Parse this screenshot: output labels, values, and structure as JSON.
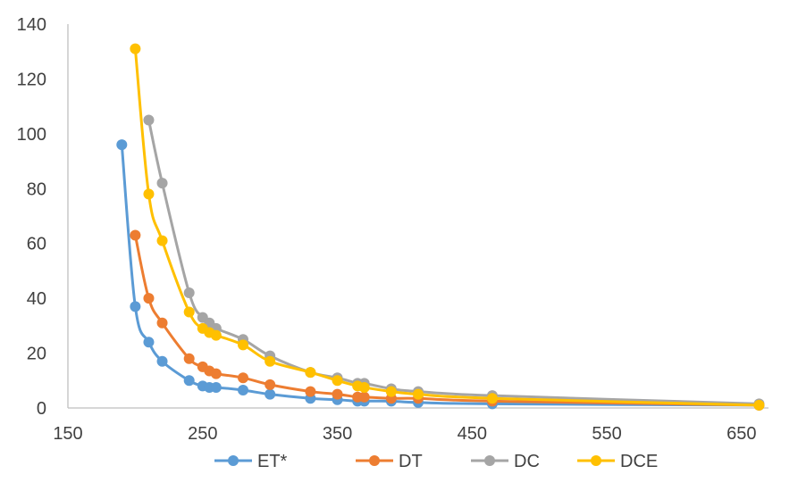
{
  "chart_data": {
    "type": "scatter",
    "title": "",
    "xlabel": "",
    "ylabel": "",
    "xlim": [
      150,
      670
    ],
    "ylim": [
      0,
      140
    ],
    "xticks": [
      150,
      250,
      350,
      450,
      550,
      650
    ],
    "yticks": [
      0,
      20,
      40,
      60,
      80,
      100,
      120,
      140
    ],
    "xtick_labels": [
      "150",
      "250",
      "350",
      "450",
      "550",
      "650"
    ],
    "ytick_labels": [
      "0",
      "20",
      "40",
      "60",
      "80",
      "100",
      "120",
      "140"
    ],
    "grid": false,
    "legend_position": "bottom",
    "series": [
      {
        "name": "ET*",
        "color": "#5B9BD5",
        "x": [
          190,
          200,
          210,
          220,
          240,
          250,
          255,
          260,
          280,
          300,
          330,
          350,
          365,
          370,
          390,
          410,
          465,
          663
        ],
        "y": [
          96,
          37,
          24,
          17,
          10,
          8,
          7.5,
          7.5,
          6.5,
          5,
          3.5,
          3,
          2.5,
          2.5,
          2.5,
          2,
          1.5,
          1
        ]
      },
      {
        "name": "DT",
        "color": "#ED7D31",
        "x": [
          200,
          210,
          220,
          240,
          250,
          255,
          260,
          280,
          300,
          330,
          350,
          365,
          370,
          390,
          410,
          465,
          663
        ],
        "y": [
          63,
          40,
          31,
          18,
          15,
          13.5,
          12.5,
          11,
          8.5,
          6,
          5,
          4,
          4,
          3.5,
          3.5,
          2.5,
          1
        ]
      },
      {
        "name": "DC",
        "color": "#A5A5A5",
        "x": [
          210,
          220,
          240,
          250,
          255,
          260,
          280,
          300,
          330,
          350,
          365,
          370,
          390,
          410,
          465,
          663
        ],
        "y": [
          105,
          82,
          42,
          33,
          31,
          29,
          25,
          19,
          13,
          11,
          9,
          9,
          7,
          6,
          4.5,
          1.5
        ]
      },
      {
        "name": "DCE",
        "color": "#FFC000",
        "x": [
          200,
          210,
          220,
          240,
          250,
          255,
          260,
          280,
          300,
          330,
          350,
          365,
          370,
          390,
          410,
          465,
          663
        ],
        "y": [
          131,
          78,
          61,
          35,
          29,
          27.5,
          26.5,
          23,
          17,
          13,
          10,
          8,
          7.5,
          6,
          5,
          3.5,
          1
        ]
      }
    ]
  }
}
